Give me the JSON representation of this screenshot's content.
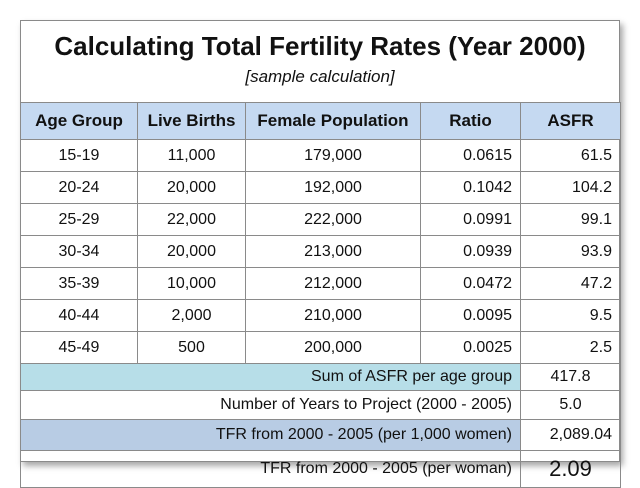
{
  "title": "Calculating Total Fertility Rates (Year 2000)",
  "subtitle": "[sample calculation]",
  "table": {
    "header": [
      "Age Group",
      "Live Births",
      "Female Population",
      "Ratio",
      "ASFR"
    ],
    "rows": [
      [
        "15-19",
        "11,000",
        "179,000",
        "0.0615",
        "61.5"
      ],
      [
        "20-24",
        "20,000",
        "192,000",
        "0.1042",
        "104.2"
      ],
      [
        "25-29",
        "22,000",
        "222,000",
        "0.0991",
        "99.1"
      ],
      [
        "30-34",
        "20,000",
        "213,000",
        "0.0939",
        "93.9"
      ],
      [
        "35-39",
        "10,000",
        "212,000",
        "0.0472",
        "47.2"
      ],
      [
        "40-44",
        "2,000",
        "210,000",
        "0.0095",
        "9.5"
      ],
      [
        "45-49",
        "500",
        "200,000",
        "0.0025",
        "2.5"
      ]
    ],
    "summary": [
      {
        "label": "Sum of ASFR per age group",
        "value": "417.8"
      },
      {
        "label": "Number of Years to Project (2000 - 2005)",
        "value": "5.0"
      },
      {
        "label": "TFR from 2000 - 2005 (per 1,000 women)",
        "value": "2,089.04"
      },
      {
        "label": "TFR from 2000 - 2005 (per woman)",
        "value": "2.09"
      }
    ]
  }
}
